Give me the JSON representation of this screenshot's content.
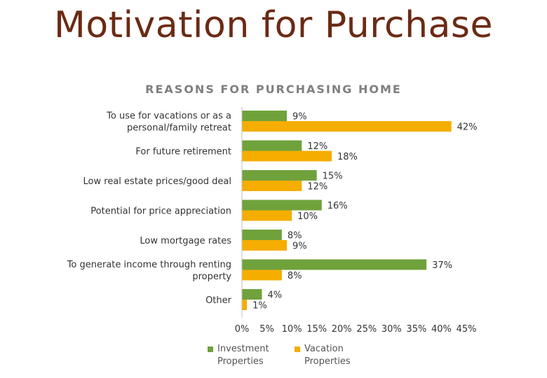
{
  "header": {
    "title": "Motivation for Purchase"
  },
  "chart_data": {
    "type": "bar",
    "orientation": "horizontal",
    "title": "REASONS FOR PURCHASING HOME",
    "xlabel": "",
    "ylabel": "",
    "xlim": [
      0,
      45
    ],
    "x_ticks": [
      "0%",
      "5%",
      "10%",
      "15%",
      "20%",
      "25%",
      "30%",
      "35%",
      "40%",
      "45%"
    ],
    "grid": false,
    "legend_position": "bottom",
    "categories": [
      [
        "To use for vacations or as a",
        "personal/family retreat"
      ],
      [
        "For future retirement"
      ],
      [
        "Low real estate prices/good deal"
      ],
      [
        "Potential for price appreciation"
      ],
      [
        "Low mortgage rates"
      ],
      [
        "To generate income through renting",
        "property"
      ],
      [
        "Other"
      ]
    ],
    "series": [
      {
        "name": "Investment Properties",
        "legend_lines": [
          "Investment",
          "Properties"
        ],
        "color": "#70a23c",
        "values": [
          9,
          12,
          15,
          16,
          8,
          37,
          4
        ],
        "labels": [
          "9%",
          "12%",
          "15%",
          "16%",
          "8%",
          "37%",
          "4%"
        ]
      },
      {
        "name": "Vacation Properties",
        "legend_lines": [
          "Vacation",
          "Properties"
        ],
        "color": "#f5ad00",
        "values": [
          42,
          18,
          12,
          10,
          9,
          8,
          1
        ],
        "labels": [
          "42%",
          "18%",
          "12%",
          "10%",
          "9%",
          "8%",
          "1%"
        ]
      }
    ]
  }
}
